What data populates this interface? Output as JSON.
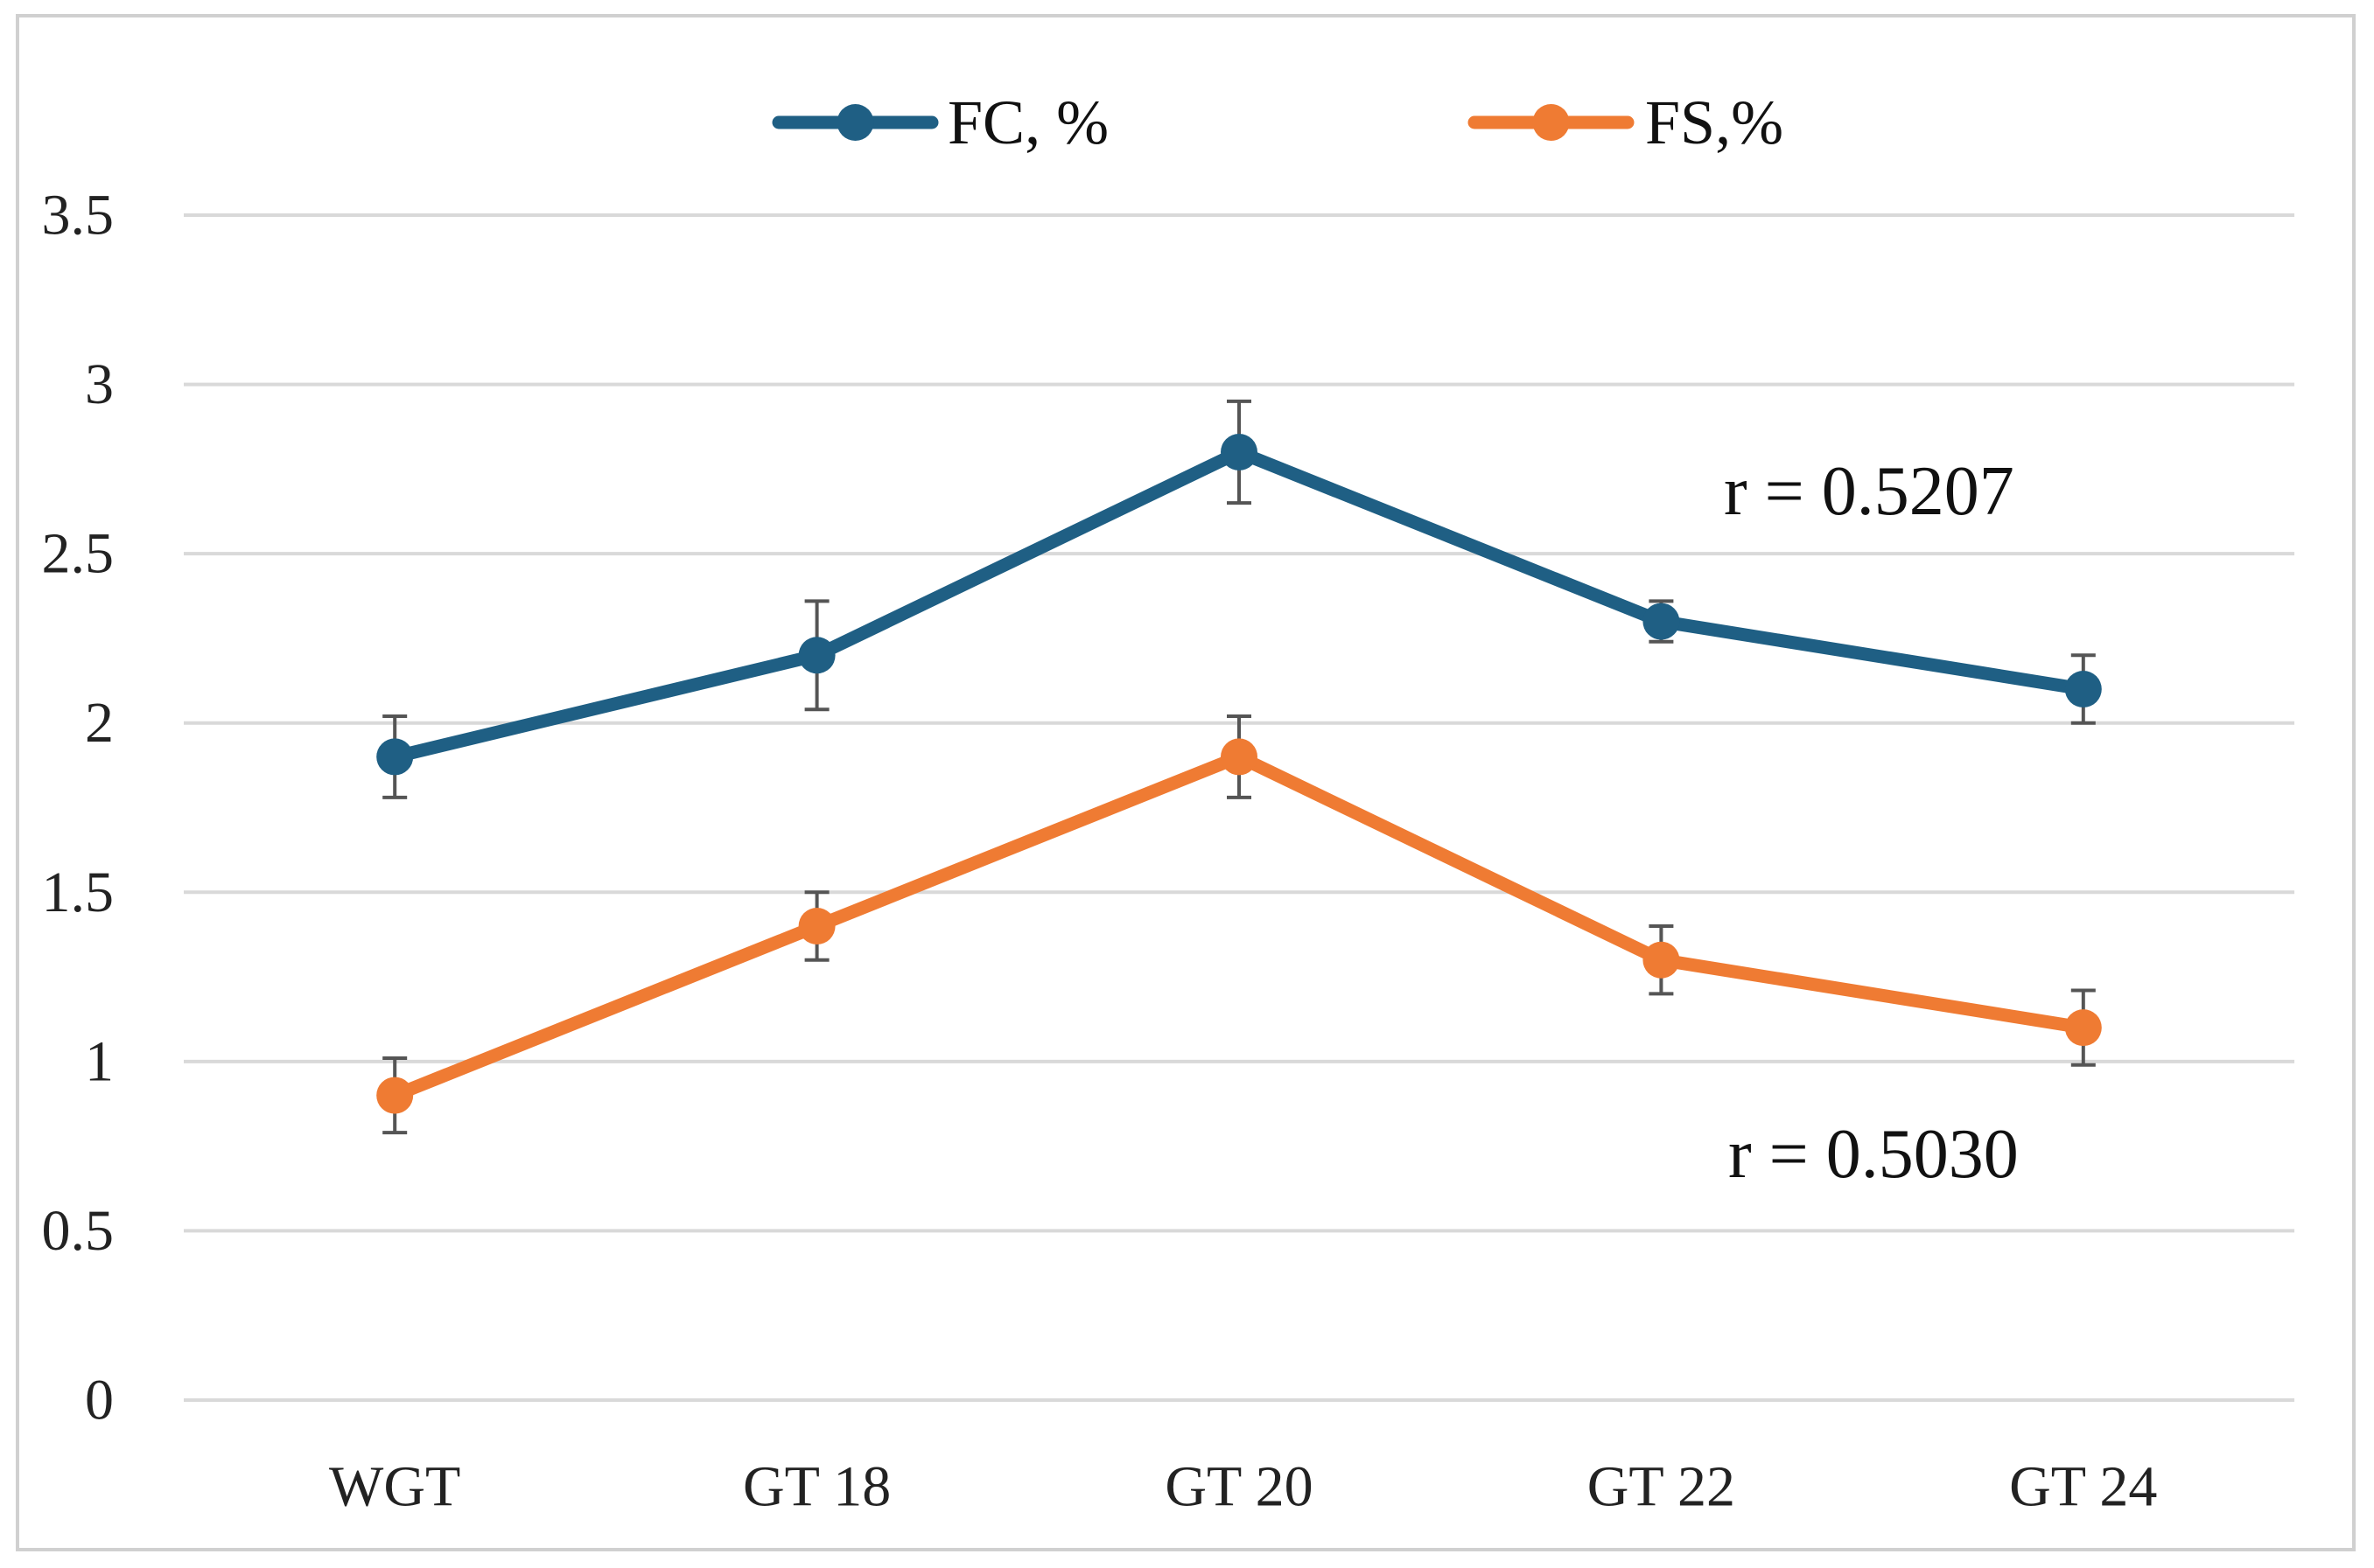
{
  "chart_data": {
    "type": "line",
    "title": "",
    "xlabel": "",
    "ylabel": "",
    "categories": [
      "WGT",
      "GT 18",
      "GT 20",
      "GT 22",
      "GT 24"
    ],
    "y_ticks": [
      "0",
      "0.5",
      "1",
      "1.5",
      "2",
      "2.5",
      "3",
      "3.5"
    ],
    "ylim": [
      0,
      3.5
    ],
    "grid": "horizontal",
    "legend_position": "top-center",
    "series": [
      {
        "name": "FC, %",
        "color": "#1f5f84",
        "values": [
          1.9,
          2.2,
          2.8,
          2.3,
          2.1
        ],
        "errors": [
          0.12,
          0.16,
          0.15,
          0.06,
          0.1
        ]
      },
      {
        "name": "FS,%",
        "color": "#ef7b33",
        "values": [
          0.9,
          1.4,
          1.9,
          1.3,
          1.1
        ],
        "errors": [
          0.11,
          0.1,
          0.12,
          0.1,
          0.11
        ]
      }
    ],
    "annotations": [
      {
        "text": "r = 0.5207",
        "series": "FC, %"
      },
      {
        "text": "r = 0.5030",
        "series": "FS,%"
      }
    ]
  },
  "colors": {
    "grid": "#d9d9d9",
    "error_bar": "#555555",
    "frame": "#d0d0d0"
  }
}
